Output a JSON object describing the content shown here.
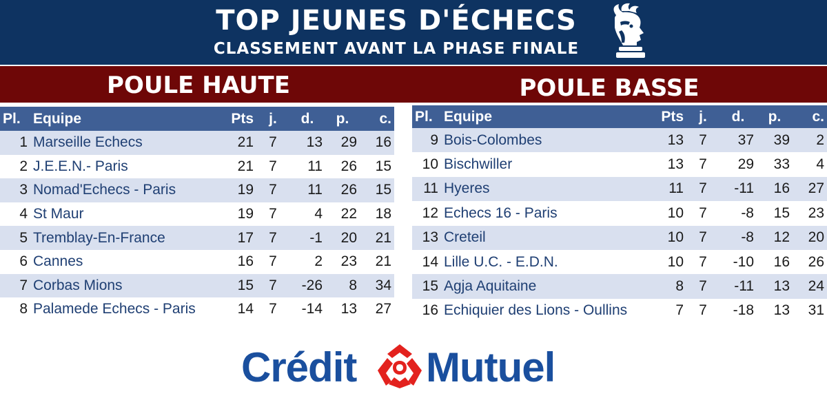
{
  "header": {
    "title": "TOP JEUNES D'ÉCHECS",
    "subtitle": "CLASSEMENT AVANT LA PHASE FINALE",
    "logo_icon": "chess-rook-bust-icon"
  },
  "colors": {
    "banner": "#0e3361",
    "pool_band": "#6e0707",
    "table_header": "#3f5f95",
    "row_alt": "#d9e0ef",
    "team_text": "#1f3f73",
    "sponsor_blue": "#1a4f9e",
    "sponsor_red": "#e3221e"
  },
  "columns": [
    "Pl.",
    "Equipe",
    "Pts",
    "j.",
    "d.",
    "p.",
    "c."
  ],
  "pools": [
    {
      "title": "POULE HAUTE",
      "rows": [
        [
          "1",
          "Marseille Echecs",
          "21",
          "7",
          "13",
          "29",
          "16"
        ],
        [
          "2",
          "J.E.E.N.- Paris",
          "21",
          "7",
          "11",
          "26",
          "15"
        ],
        [
          "3",
          "Nomad'Echecs - Paris",
          "19",
          "7",
          "11",
          "26",
          "15"
        ],
        [
          "4",
          "St Maur",
          "19",
          "7",
          "4",
          "22",
          "18"
        ],
        [
          "5",
          "Tremblay-En-France",
          "17",
          "7",
          "-1",
          "20",
          "21"
        ],
        [
          "6",
          "Cannes",
          "16",
          "7",
          "2",
          "23",
          "21"
        ],
        [
          "7",
          "Corbas Mions",
          "15",
          "7",
          "-26",
          "8",
          "34"
        ],
        [
          "8",
          "Palamede Echecs - Paris",
          "14",
          "7",
          "-14",
          "13",
          "27"
        ]
      ]
    },
    {
      "title": "POULE BASSE",
      "rows": [
        [
          "9",
          "Bois-Colombes",
          "13",
          "7",
          "37",
          "39",
          "2"
        ],
        [
          "10",
          "Bischwiller",
          "13",
          "7",
          "29",
          "33",
          "4"
        ],
        [
          "11",
          "Hyeres",
          "11",
          "7",
          "-11",
          "16",
          "27"
        ],
        [
          "12",
          "Echecs 16 - Paris",
          "10",
          "7",
          "-8",
          "15",
          "23"
        ],
        [
          "13",
          "Creteil",
          "10",
          "7",
          "-8",
          "12",
          "20"
        ],
        [
          "14",
          "Lille U.C. - E.D.N.",
          "10",
          "7",
          "-10",
          "16",
          "26"
        ],
        [
          "15",
          "Agja Aquitaine",
          "8",
          "7",
          "-11",
          "13",
          "24"
        ],
        [
          "16",
          "Echiquier des Lions - Oullins",
          "7",
          "7",
          "-18",
          "13",
          "31"
        ]
      ]
    }
  ],
  "sponsor": {
    "left": "Crédit",
    "right": "Mutuel",
    "icon": "credit-mutuel-logo-icon"
  }
}
